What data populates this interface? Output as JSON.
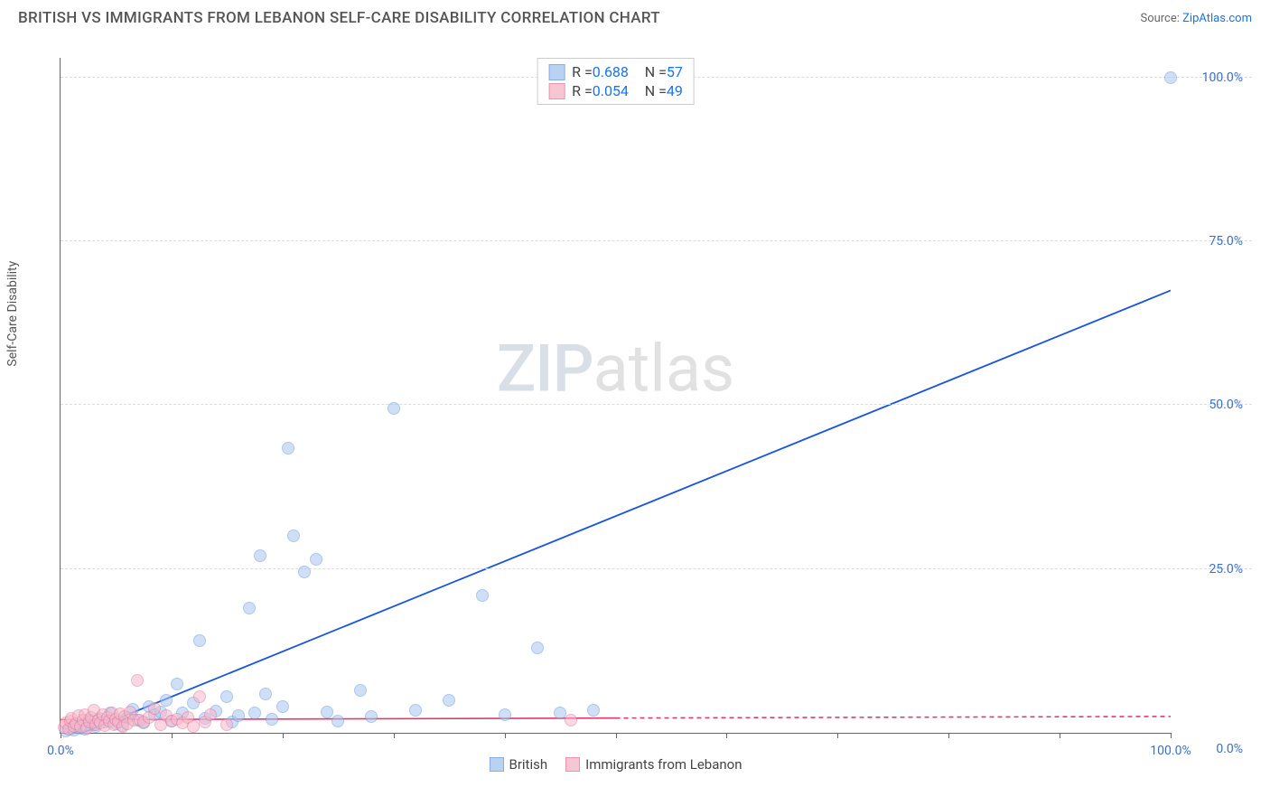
{
  "title": "BRITISH VS IMMIGRANTS FROM LEBANON SELF-CARE DISABILITY CORRELATION CHART",
  "source_prefix": "Source: ",
  "source_link": "ZipAtlas.com",
  "y_axis_label": "Self-Care Disability",
  "watermark_zip": "ZIP",
  "watermark_atlas": "atlas",
  "chart": {
    "type": "scatter",
    "xlim": [
      0,
      100
    ],
    "ylim": [
      0,
      103
    ],
    "x_ticks": [
      0,
      10,
      20,
      30,
      40,
      50,
      60,
      70,
      80,
      90,
      100
    ],
    "x_tick_labels": {
      "0": "0.0%",
      "100": "100.0%"
    },
    "y_ticks": [
      0,
      25,
      50,
      75,
      100
    ],
    "y_tick_labels": {
      "0": "0.0%",
      "25": "25.0%",
      "50": "50.0%",
      "75": "75.0%",
      "100": "100.0%"
    },
    "grid_color": "#dddddd",
    "background_color": "#ffffff",
    "x_label_color": "#3b6fc9",
    "y_label_color": "#3b6fc9",
    "axis_color": "#666666"
  },
  "series": [
    {
      "id": "british",
      "label": "British",
      "marker_fill": "#a9c7f0",
      "marker_stroke": "#6a9be0",
      "marker_fill_opacity": 0.55,
      "marker_radius": 7,
      "r_value": "0.688",
      "n_value": "57",
      "trend": {
        "x1": 2,
        "y1": 0,
        "x2": 100,
        "y2": 67.5,
        "color": "#1a56db",
        "width": 1.8,
        "dash_after_x": null
      },
      "points": [
        [
          0.5,
          0.3
        ],
        [
          0.8,
          0.6
        ],
        [
          1.0,
          0.8
        ],
        [
          1.2,
          0.4
        ],
        [
          1.5,
          1.0
        ],
        [
          1.8,
          0.7
        ],
        [
          2.0,
          1.2
        ],
        [
          2.2,
          0.5
        ],
        [
          2.5,
          2.0
        ],
        [
          3.0,
          1.3
        ],
        [
          3.2,
          0.9
        ],
        [
          3.5,
          2.2
        ],
        [
          4.0,
          1.6
        ],
        [
          4.5,
          3.0
        ],
        [
          5.0,
          1.4
        ],
        [
          5.5,
          1.1
        ],
        [
          6.0,
          2.4
        ],
        [
          6.5,
          3.6
        ],
        [
          7.0,
          2.0
        ],
        [
          7.5,
          1.5
        ],
        [
          8.0,
          4.0
        ],
        [
          8.5,
          2.8
        ],
        [
          9.0,
          3.2
        ],
        [
          9.5,
          5.0
        ],
        [
          10.0,
          1.8
        ],
        [
          10.5,
          7.5
        ],
        [
          11.0,
          3.0
        ],
        [
          12.0,
          4.6
        ],
        [
          12.5,
          14.0
        ],
        [
          13.0,
          2.2
        ],
        [
          14.0,
          3.3
        ],
        [
          15.0,
          5.5
        ],
        [
          15.5,
          1.7
        ],
        [
          16.0,
          2.6
        ],
        [
          17.0,
          19.0
        ],
        [
          17.5,
          3.0
        ],
        [
          18.0,
          27.0
        ],
        [
          18.5,
          6.0
        ],
        [
          19.0,
          2.1
        ],
        [
          20.0,
          4.0
        ],
        [
          20.5,
          43.5
        ],
        [
          21.0,
          30.0
        ],
        [
          22.0,
          24.5
        ],
        [
          23.0,
          26.5
        ],
        [
          24.0,
          3.2
        ],
        [
          25.0,
          1.8
        ],
        [
          27.0,
          6.5
        ],
        [
          28.0,
          2.5
        ],
        [
          30.0,
          49.5
        ],
        [
          32.0,
          3.5
        ],
        [
          35.0,
          5.0
        ],
        [
          38.0,
          21.0
        ],
        [
          40.0,
          2.8
        ],
        [
          43.0,
          13.0
        ],
        [
          45.0,
          3.0
        ],
        [
          48.0,
          3.5
        ],
        [
          100.0,
          100.0
        ]
      ]
    },
    {
      "id": "lebanon",
      "label": "Immigrants from Lebanon",
      "marker_fill": "#f6b8c9",
      "marker_stroke": "#e77aa0",
      "marker_fill_opacity": 0.55,
      "marker_radius": 7,
      "r_value": "0.054",
      "n_value": "49",
      "trend": {
        "x1": 0,
        "y1": 2.0,
        "x2": 100,
        "y2": 2.5,
        "color": "#e23b6b",
        "width": 1.6,
        "dash_after_x": 50
      },
      "points": [
        [
          0.3,
          0.8
        ],
        [
          0.5,
          1.5
        ],
        [
          0.7,
          0.6
        ],
        [
          0.9,
          1.8
        ],
        [
          1.0,
          2.2
        ],
        [
          1.2,
          0.9
        ],
        [
          1.4,
          1.4
        ],
        [
          1.6,
          2.6
        ],
        [
          1.8,
          1.0
        ],
        [
          2.0,
          1.9
        ],
        [
          2.2,
          2.8
        ],
        [
          2.4,
          0.7
        ],
        [
          2.6,
          1.6
        ],
        [
          2.8,
          2.3
        ],
        [
          3.0,
          3.5
        ],
        [
          3.2,
          1.2
        ],
        [
          3.4,
          2.0
        ],
        [
          3.6,
          1.5
        ],
        [
          3.8,
          2.7
        ],
        [
          4.0,
          1.1
        ],
        [
          4.2,
          2.4
        ],
        [
          4.4,
          1.8
        ],
        [
          4.6,
          3.0
        ],
        [
          4.8,
          1.3
        ],
        [
          5.0,
          2.1
        ],
        [
          5.2,
          1.7
        ],
        [
          5.4,
          2.9
        ],
        [
          5.6,
          1.0
        ],
        [
          5.8,
          2.5
        ],
        [
          6.0,
          1.4
        ],
        [
          6.3,
          3.2
        ],
        [
          6.6,
          1.9
        ],
        [
          6.9,
          8.0
        ],
        [
          7.2,
          2.0
        ],
        [
          7.5,
          1.6
        ],
        [
          8.0,
          2.3
        ],
        [
          8.5,
          3.7
        ],
        [
          9.0,
          1.2
        ],
        [
          9.5,
          2.6
        ],
        [
          10.0,
          1.8
        ],
        [
          10.5,
          2.1
        ],
        [
          11.0,
          1.5
        ],
        [
          11.5,
          2.4
        ],
        [
          12.0,
          1.0
        ],
        [
          12.5,
          5.5
        ],
        [
          13.0,
          1.7
        ],
        [
          13.5,
          2.8
        ],
        [
          15.0,
          1.3
        ],
        [
          46.0,
          2.0
        ]
      ]
    }
  ],
  "legend_top": {
    "r_label": "R =",
    "n_label": "N ="
  }
}
